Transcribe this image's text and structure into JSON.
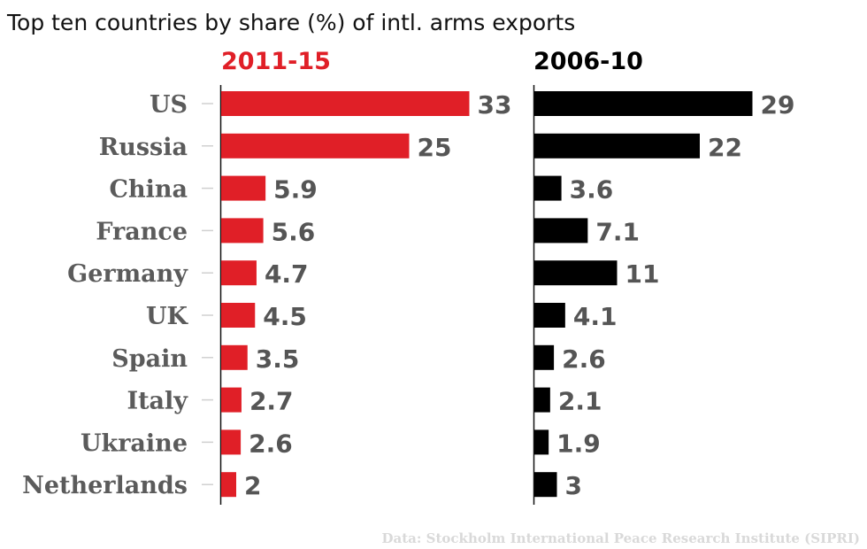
{
  "title": "Top ten countries by share (%) of intl. arms exports",
  "source": "Data: Stockholm International Peace Research Institute (SIPRI)",
  "colors": {
    "panel_2011": "#e01f27",
    "panel_2006": "#000000",
    "country_text": "#5b5b5b",
    "value_text": "#555555",
    "source_text": "#d9d9d9"
  },
  "chart_data": {
    "type": "bar",
    "orientation": "horizontal",
    "title": "Top ten countries by share (%) of intl. arms exports",
    "categories": [
      "US",
      "Russia",
      "China",
      "France",
      "Germany",
      "UK",
      "Spain",
      "Italy",
      "Ukraine",
      "Netherlands"
    ],
    "series": [
      {
        "name": "2011-15",
        "values": [
          33,
          25,
          5.9,
          5.6,
          4.7,
          4.5,
          3.5,
          2.7,
          2.6,
          2
        ],
        "labels": [
          "33",
          "25",
          "5.9",
          "5.6",
          "4.7",
          "4.5",
          "3.5",
          "2.7",
          "2.6",
          "2"
        ]
      },
      {
        "name": "2006-10",
        "values": [
          29,
          22,
          3.6,
          7.1,
          11,
          4.1,
          2.6,
          2.1,
          1.9,
          3
        ],
        "labels": [
          "29",
          "22",
          "3.6",
          "7.1",
          "11",
          "4.1",
          "2.6",
          "2.1",
          "1.9",
          "3"
        ]
      }
    ],
    "xlabel": "",
    "ylabel": "",
    "xlim": [
      0,
      33
    ],
    "grid": false,
    "legend": "panel titles above each panel"
  }
}
